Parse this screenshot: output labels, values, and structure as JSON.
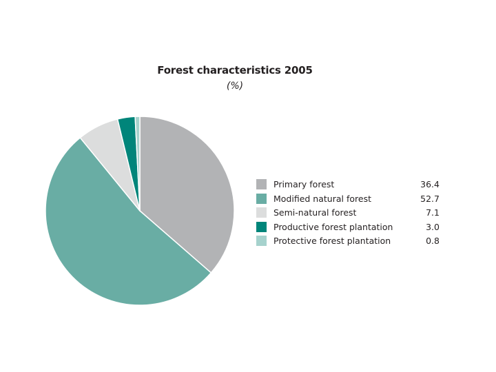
{
  "chart_data": {
    "type": "pie",
    "title": "Forest characteristics 2005",
    "subtitle": "(%)",
    "legend_position": "right",
    "slices": [
      {
        "label": "Primary forest",
        "value": 36.4,
        "value_label": "36.4",
        "color": "#b2b3b5"
      },
      {
        "label": "Modified natural forest",
        "value": 52.7,
        "value_label": "52.7",
        "color": "#69ada4"
      },
      {
        "label": "Semi-natural forest",
        "value": 7.1,
        "value_label": "7.1",
        "color": "#dcdddd"
      },
      {
        "label": "Productive forest plantation",
        "value": 3.0,
        "value_label": "3.0",
        "color": "#00857a"
      },
      {
        "label": "Protective forest plantation",
        "value": 0.8,
        "value_label": "0.8",
        "color": "#a6d2cd"
      }
    ]
  }
}
